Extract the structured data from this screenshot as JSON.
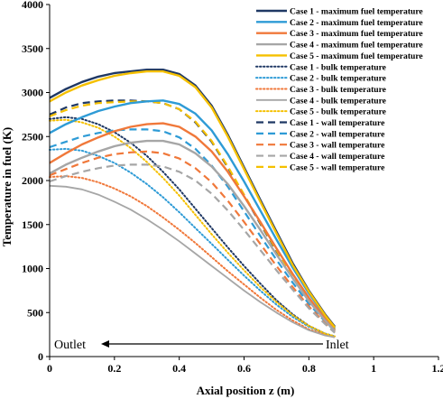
{
  "chart_data": {
    "type": "line",
    "title": "",
    "xlabel": "Axial position  z (m)",
    "ylabel": "Temperature  in fuel (K)",
    "xlim": [
      0,
      1.2
    ],
    "ylim": [
      0,
      4000
    ],
    "x_ticks": [
      "0",
      "0.2",
      "0.4",
      "0.6",
      "0.8",
      "1",
      "1.2"
    ],
    "y_ticks": [
      "0",
      "500",
      "1000",
      "1500",
      "2000",
      "2500",
      "3000",
      "3500",
      "4000"
    ],
    "grid": false,
    "legend_position": "top-right",
    "colors": {
      "case1": "#1f3864",
      "case2": "#2e9bd6",
      "case3": "#f0783a",
      "case4": "#a6a6a6",
      "case5": "#f5c000"
    },
    "annotations": [
      {
        "text": "Outlet",
        "arrow": "left"
      },
      {
        "text": "Inlet"
      }
    ],
    "series": [
      {
        "name": "Case 1 - maximum fuel temperature",
        "case": "case1",
        "style": "solid",
        "x": [
          0,
          0.05,
          0.1,
          0.15,
          0.2,
          0.25,
          0.3,
          0.35,
          0.4,
          0.45,
          0.5,
          0.55,
          0.6,
          0.65,
          0.7,
          0.75,
          0.8,
          0.85,
          0.88
        ],
        "y": [
          2940,
          3040,
          3120,
          3180,
          3220,
          3240,
          3260,
          3260,
          3210,
          3080,
          2850,
          2520,
          2150,
          1780,
          1420,
          1060,
          750,
          480,
          340
        ]
      },
      {
        "name": "Case 2 - maximum fuel temperature",
        "case": "case2",
        "style": "solid",
        "x": [
          0,
          0.05,
          0.1,
          0.15,
          0.2,
          0.25,
          0.3,
          0.35,
          0.4,
          0.45,
          0.5,
          0.55,
          0.6,
          0.65,
          0.7,
          0.75,
          0.8,
          0.85,
          0.88
        ],
        "y": [
          2540,
          2640,
          2720,
          2790,
          2840,
          2880,
          2900,
          2910,
          2870,
          2760,
          2570,
          2300,
          1990,
          1660,
          1330,
          1010,
          720,
          460,
          320
        ]
      },
      {
        "name": "Case 3 - maximum fuel temperature",
        "case": "case3",
        "style": "solid",
        "x": [
          0,
          0.05,
          0.1,
          0.15,
          0.2,
          0.25,
          0.3,
          0.35,
          0.4,
          0.45,
          0.5,
          0.55,
          0.6,
          0.65,
          0.7,
          0.75,
          0.8,
          0.85,
          0.88
        ],
        "y": [
          2200,
          2310,
          2410,
          2490,
          2560,
          2610,
          2640,
          2650,
          2610,
          2500,
          2330,
          2100,
          1820,
          1530,
          1230,
          940,
          670,
          430,
          300
        ]
      },
      {
        "name": "Case 4 - maximum fuel temperature",
        "case": "case4",
        "style": "solid",
        "x": [
          0,
          0.05,
          0.1,
          0.15,
          0.2,
          0.25,
          0.3,
          0.35,
          0.4,
          0.45,
          0.5,
          0.55,
          0.6,
          0.65,
          0.7,
          0.75,
          0.8,
          0.85,
          0.88
        ],
        "y": [
          2080,
          2180,
          2260,
          2330,
          2390,
          2430,
          2450,
          2450,
          2410,
          2310,
          2160,
          1960,
          1710,
          1440,
          1160,
          890,
          630,
          410,
          290
        ]
      },
      {
        "name": "Case 5 - maximum fuel temperature",
        "case": "case5",
        "style": "solid",
        "x": [
          0,
          0.05,
          0.1,
          0.15,
          0.2,
          0.25,
          0.3,
          0.35,
          0.4,
          0.45,
          0.5,
          0.55,
          0.6,
          0.65,
          0.7,
          0.75,
          0.8,
          0.85,
          0.88
        ],
        "y": [
          2900,
          3000,
          3080,
          3140,
          3190,
          3220,
          3240,
          3240,
          3190,
          3060,
          2830,
          2500,
          2130,
          1760,
          1400,
          1040,
          740,
          470,
          330
        ]
      },
      {
        "name": "Case 1 - bulk temperature",
        "case": "case1",
        "style": "dotted",
        "x": [
          0,
          0.05,
          0.1,
          0.15,
          0.2,
          0.25,
          0.3,
          0.35,
          0.4,
          0.45,
          0.5,
          0.55,
          0.6,
          0.65,
          0.7,
          0.75,
          0.8,
          0.85,
          0.88
        ],
        "y": [
          2700,
          2720,
          2700,
          2640,
          2550,
          2430,
          2280,
          2100,
          1900,
          1680,
          1460,
          1240,
          1030,
          830,
          640,
          480,
          350,
          260,
          230
        ]
      },
      {
        "name": "Case 2 - bulk temperature",
        "case": "case2",
        "style": "dotted",
        "x": [
          0,
          0.05,
          0.1,
          0.15,
          0.2,
          0.25,
          0.3,
          0.35,
          0.4,
          0.45,
          0.5,
          0.55,
          0.6,
          0.65,
          0.7,
          0.75,
          0.8,
          0.85,
          0.88
        ],
        "y": [
          2350,
          2360,
          2340,
          2280,
          2200,
          2090,
          1960,
          1810,
          1640,
          1460,
          1280,
          1100,
          920,
          750,
          590,
          450,
          340,
          260,
          230
        ]
      },
      {
        "name": "Case 3 - bulk temperature",
        "case": "case3",
        "style": "dotted",
        "x": [
          0,
          0.05,
          0.1,
          0.15,
          0.2,
          0.25,
          0.3,
          0.35,
          0.4,
          0.45,
          0.5,
          0.55,
          0.6,
          0.65,
          0.7,
          0.75,
          0.8,
          0.85,
          0.88
        ],
        "y": [
          2040,
          2050,
          2030,
          1980,
          1910,
          1820,
          1710,
          1580,
          1440,
          1290,
          1130,
          970,
          820,
          670,
          530,
          410,
          310,
          250,
          220
        ]
      },
      {
        "name": "Case 4 - bulk temperature",
        "case": "case4",
        "style": "solid-thin",
        "x": [
          0,
          0.05,
          0.1,
          0.15,
          0.2,
          0.25,
          0.3,
          0.35,
          0.4,
          0.45,
          0.5,
          0.55,
          0.6,
          0.65,
          0.7,
          0.75,
          0.8,
          0.85,
          0.88
        ],
        "y": [
          1940,
          1930,
          1900,
          1840,
          1760,
          1670,
          1560,
          1440,
          1310,
          1170,
          1030,
          890,
          750,
          620,
          500,
          390,
          300,
          240,
          220
        ]
      },
      {
        "name": "Case 5 - bulk temperature",
        "case": "case5",
        "style": "dotted",
        "x": [
          0,
          0.05,
          0.1,
          0.15,
          0.2,
          0.25,
          0.3,
          0.35,
          0.4,
          0.45,
          0.5,
          0.55,
          0.6,
          0.65,
          0.7,
          0.75,
          0.8,
          0.85,
          0.88
        ],
        "y": [
          2680,
          2690,
          2660,
          2600,
          2500,
          2370,
          2210,
          2030,
          1830,
          1610,
          1390,
          1180,
          980,
          790,
          620,
          470,
          350,
          260,
          230
        ]
      },
      {
        "name": "Case 1 - wall temperature",
        "case": "case1",
        "style": "dashed",
        "x": [
          0,
          0.05,
          0.1,
          0.15,
          0.2,
          0.25,
          0.3,
          0.35,
          0.4,
          0.45,
          0.5,
          0.55,
          0.6,
          0.65,
          0.7,
          0.75,
          0.8,
          0.85,
          0.88
        ],
        "y": [
          2750,
          2830,
          2880,
          2900,
          2910,
          2910,
          2900,
          2880,
          2810,
          2660,
          2440,
          2150,
          1830,
          1510,
          1200,
          900,
          640,
          420,
          300
        ]
      },
      {
        "name": "Case 2 - wall temperature",
        "case": "case2",
        "style": "dashed",
        "x": [
          0,
          0.05,
          0.1,
          0.15,
          0.2,
          0.25,
          0.3,
          0.35,
          0.4,
          0.45,
          0.5,
          0.55,
          0.6,
          0.65,
          0.7,
          0.75,
          0.8,
          0.85,
          0.88
        ],
        "y": [
          2380,
          2440,
          2500,
          2540,
          2570,
          2580,
          2580,
          2560,
          2490,
          2360,
          2170,
          1930,
          1650,
          1370,
          1100,
          840,
          600,
          400,
          290
        ]
      },
      {
        "name": "Case 3 - wall temperature",
        "case": "case3",
        "style": "dashed",
        "x": [
          0,
          0.05,
          0.1,
          0.15,
          0.2,
          0.25,
          0.3,
          0.35,
          0.4,
          0.45,
          0.5,
          0.55,
          0.6,
          0.65,
          0.7,
          0.75,
          0.8,
          0.85,
          0.88
        ],
        "y": [
          2060,
          2130,
          2200,
          2260,
          2300,
          2320,
          2330,
          2310,
          2250,
          2140,
          1980,
          1770,
          1530,
          1280,
          1030,
          790,
          570,
          380,
          280
        ]
      },
      {
        "name": "Case 4 - wall temperature",
        "case": "case4",
        "style": "dashed",
        "x": [
          0,
          0.05,
          0.1,
          0.15,
          0.2,
          0.25,
          0.3,
          0.35,
          0.4,
          0.45,
          0.5,
          0.55,
          0.6,
          0.65,
          0.7,
          0.75,
          0.8,
          0.85,
          0.88
        ],
        "y": [
          1990,
          2050,
          2100,
          2140,
          2170,
          2180,
          2180,
          2160,
          2100,
          2000,
          1850,
          1660,
          1440,
          1210,
          980,
          760,
          550,
          370,
          270
        ]
      },
      {
        "name": "Case 5 - wall temperature",
        "case": "case5",
        "style": "dashed",
        "x": [
          0,
          0.05,
          0.1,
          0.15,
          0.2,
          0.25,
          0.3,
          0.35,
          0.4,
          0.45,
          0.5,
          0.55,
          0.6,
          0.65,
          0.7,
          0.75,
          0.8,
          0.85,
          0.88
        ],
        "y": [
          2730,
          2800,
          2850,
          2880,
          2890,
          2900,
          2900,
          2880,
          2810,
          2670,
          2450,
          2160,
          1840,
          1520,
          1210,
          910,
          650,
          430,
          310
        ]
      }
    ]
  }
}
